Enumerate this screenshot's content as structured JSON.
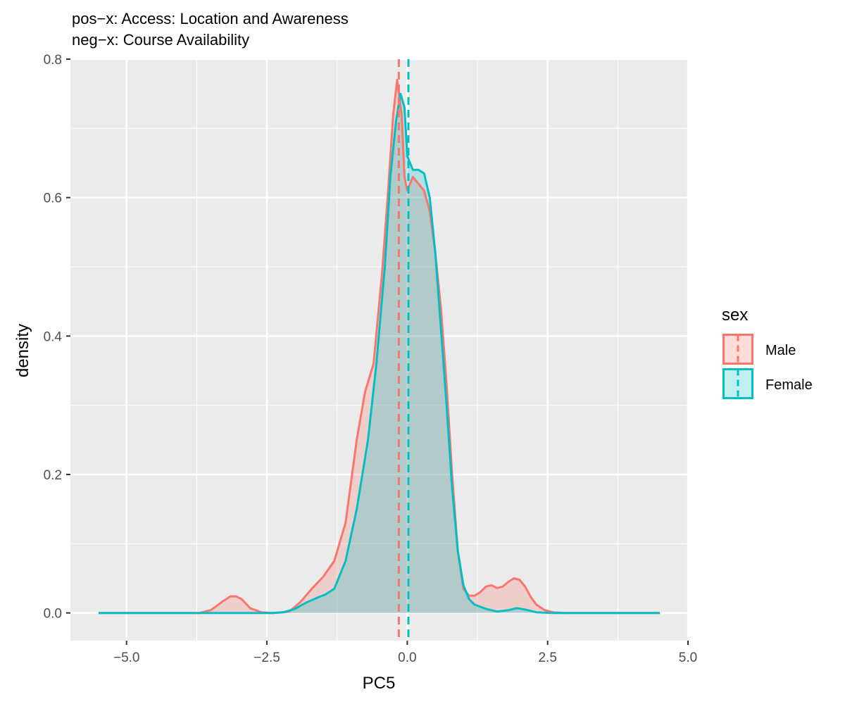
{
  "chart_data": {
    "type": "area",
    "title": "pos−x: Access: Location and Awareness",
    "subtitle": "neg−x: Course Availability",
    "xlabel": "PC5",
    "ylabel": "density",
    "xlim": [
      -6.0,
      5.0
    ],
    "ylim": [
      -0.04,
      0.8
    ],
    "x_ticks": [
      -5.0,
      -2.5,
      0.0,
      2.5,
      5.0
    ],
    "x_tick_labels": [
      "−5.0",
      "−2.5",
      "0.0",
      "2.5",
      "5.0"
    ],
    "y_ticks": [
      0.0,
      0.2,
      0.4,
      0.6,
      0.8
    ],
    "y_tick_labels": [
      "0.0",
      "0.2",
      "0.4",
      "0.6",
      "0.8"
    ],
    "grid": true,
    "legend": {
      "title": "sex",
      "position": "right"
    },
    "series": [
      {
        "name": "Male",
        "color": "#F8766D",
        "fill": "#F4D0C9",
        "mean_line": -0.15,
        "x": [
          -5.5,
          -3.7,
          -3.5,
          -3.3,
          -3.15,
          -3.05,
          -2.95,
          -2.8,
          -2.6,
          -2.4,
          -2.1,
          -1.9,
          -1.7,
          -1.5,
          -1.3,
          -1.1,
          -0.9,
          -0.75,
          -0.6,
          -0.45,
          -0.35,
          -0.25,
          -0.18,
          -0.1,
          -0.05,
          0.0,
          0.1,
          0.2,
          0.3,
          0.4,
          0.5,
          0.6,
          0.7,
          0.8,
          0.9,
          1.0,
          1.1,
          1.2,
          1.3,
          1.4,
          1.5,
          1.6,
          1.7,
          1.8,
          1.9,
          2.0,
          2.1,
          2.2,
          2.3,
          2.45,
          2.6,
          2.8,
          4.5
        ],
        "y": [
          0.0,
          0.0,
          0.004,
          0.016,
          0.024,
          0.024,
          0.02,
          0.007,
          0.001,
          0.0,
          0.002,
          0.016,
          0.035,
          0.052,
          0.075,
          0.13,
          0.25,
          0.32,
          0.36,
          0.49,
          0.6,
          0.72,
          0.77,
          0.72,
          0.63,
          0.61,
          0.63,
          0.62,
          0.61,
          0.58,
          0.52,
          0.44,
          0.33,
          0.2,
          0.09,
          0.035,
          0.025,
          0.025,
          0.03,
          0.038,
          0.04,
          0.036,
          0.038,
          0.045,
          0.05,
          0.048,
          0.038,
          0.023,
          0.012,
          0.004,
          0.001,
          0.0,
          0.0
        ]
      },
      {
        "name": "Female",
        "color": "#00BFC4",
        "fill": "#CCE5E5",
        "mean_line": 0.02,
        "x": [
          -5.5,
          -2.4,
          -2.2,
          -2.0,
          -1.8,
          -1.6,
          -1.45,
          -1.3,
          -1.1,
          -0.9,
          -0.7,
          -0.55,
          -0.4,
          -0.3,
          -0.2,
          -0.12,
          -0.05,
          0.0,
          0.1,
          0.2,
          0.3,
          0.4,
          0.5,
          0.6,
          0.7,
          0.8,
          0.9,
          1.0,
          1.1,
          1.2,
          1.4,
          1.6,
          1.8,
          1.95,
          2.1,
          2.3,
          2.6,
          4.5
        ],
        "y": [
          0.0,
          0.0,
          0.001,
          0.006,
          0.015,
          0.022,
          0.027,
          0.035,
          0.075,
          0.15,
          0.25,
          0.36,
          0.5,
          0.63,
          0.71,
          0.75,
          0.73,
          0.66,
          0.64,
          0.64,
          0.635,
          0.6,
          0.52,
          0.41,
          0.3,
          0.18,
          0.09,
          0.04,
          0.02,
          0.012,
          0.006,
          0.002,
          0.004,
          0.007,
          0.005,
          0.001,
          0.0,
          0.0
        ]
      }
    ]
  }
}
